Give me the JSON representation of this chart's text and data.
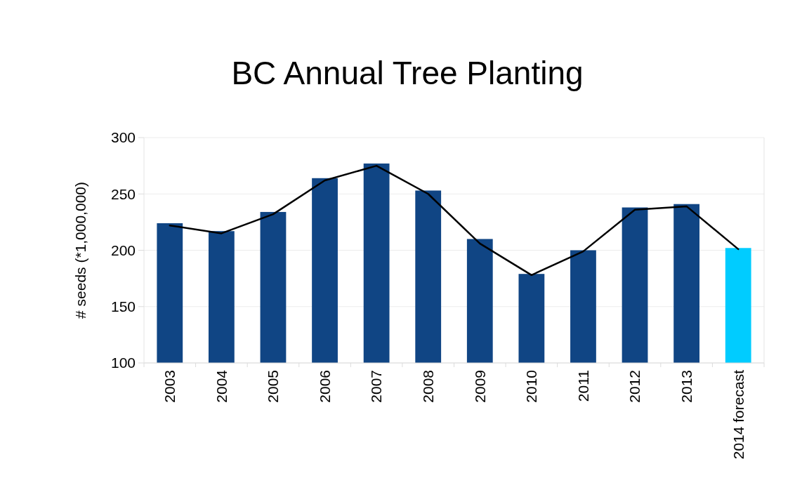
{
  "chart_data": {
    "type": "bar",
    "title": "BC Annual Tree Planting",
    "ylabel": "# seeds (*1,000,000)",
    "categories": [
      "2003",
      "2004",
      "2005",
      "2006",
      "2007",
      "2008",
      "2009",
      "2010",
      "2011",
      "2012",
      "2013",
      "2014 forecast"
    ],
    "series": [
      {
        "colors": [
          "#104584",
          "#104584",
          "#104584",
          "#104584",
          "#104584",
          "#104584",
          "#104584",
          "#104584",
          "#104584",
          "#104584",
          "#104584",
          "#00ccff"
        ],
        "values": [
          224,
          217,
          234,
          264,
          277,
          253,
          210,
          179,
          200,
          238,
          241,
          202
        ]
      },
      {
        "type": "line",
        "color": "#000000",
        "values": [
          222,
          215,
          232,
          262,
          275,
          250,
          206,
          178,
          199,
          236,
          239,
          201
        ]
      }
    ],
    "ylim": [
      100,
      300
    ],
    "yticks": [
      100,
      150,
      200,
      250,
      300
    ],
    "grid": "y"
  }
}
